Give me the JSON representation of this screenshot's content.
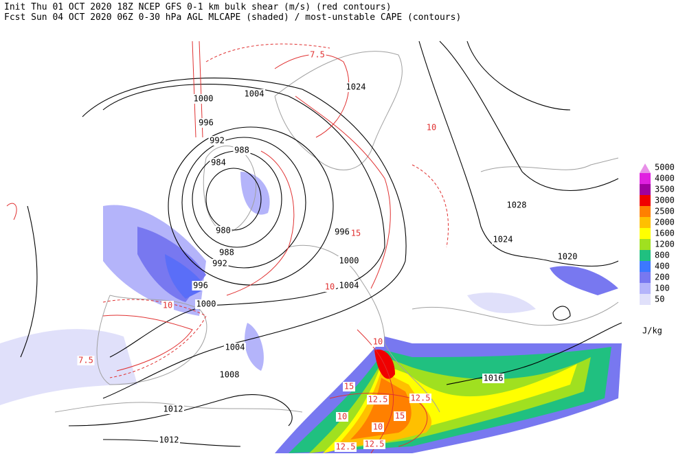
{
  "header": {
    "line1": "Init  Thu 01 OCT 2020 18Z  NCEP GFS 0-1 km bulk shear (m/s) (red contours)",
    "line2": "Fcst Sun 04 OCT 2020 06Z  0-30 hPa AGL MLCAPE (shaded) / most-unstable CAPE (contours)"
  },
  "legend": {
    "levels": [
      {
        "label": "5000",
        "color": "#e890e8"
      },
      {
        "label": "4000",
        "color": "#e020e0"
      },
      {
        "label": "3500",
        "color": "#a000a0"
      },
      {
        "label": "3000",
        "color": "#f00000"
      },
      {
        "label": "2500",
        "color": "#ff8000"
      },
      {
        "label": "2000",
        "color": "#ffc000"
      },
      {
        "label": "1600",
        "color": "#ffff00"
      },
      {
        "label": "1200",
        "color": "#a0e020"
      },
      {
        "label": "800",
        "color": "#20c080"
      },
      {
        "label": "400",
        "color": "#3c78ff"
      },
      {
        "label": "200",
        "color": "#7878f0"
      },
      {
        "label": "100",
        "color": "#b4b4fa"
      },
      {
        "label": "50",
        "color": "#e0e0fa"
      }
    ],
    "units": "J/kg"
  },
  "isobar_labels": [
    "1004",
    "1000",
    "996",
    "992",
    "988",
    "984",
    "980",
    "988",
    "992",
    "996",
    "1000",
    "1004",
    "1008",
    "1012",
    "1012",
    "996",
    "1000",
    "1004",
    "1024",
    "1028",
    "1024",
    "1020",
    "1016"
  ],
  "shear_labels": [
    "7.5",
    "10",
    "15",
    "12.5",
    "12.5",
    "10",
    "12.5",
    "12.5",
    "10",
    "15",
    "7.5",
    "10",
    "10",
    "15",
    "10"
  ]
}
